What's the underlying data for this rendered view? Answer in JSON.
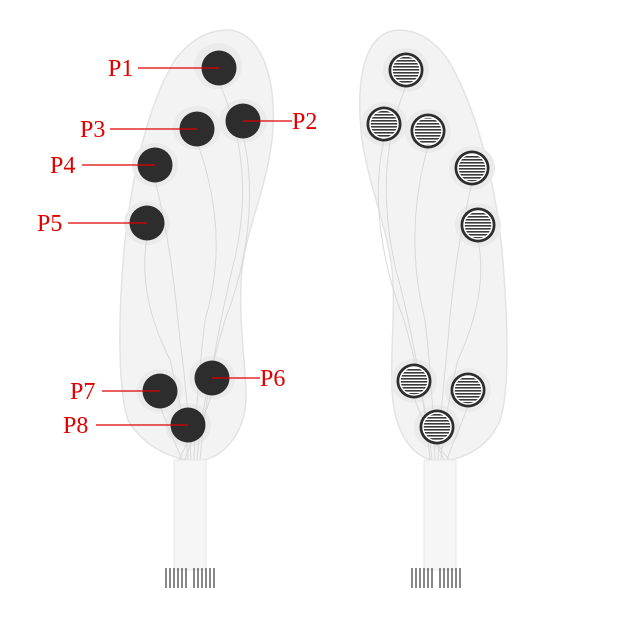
{
  "colors": {
    "label": "#e00000",
    "sensor": "#2d2d2d",
    "insole_fill": "#f3f3f3",
    "insole_edge": "#e3e3e3",
    "trace": "#d9d9d9"
  },
  "sensors": [
    {
      "id": "P1",
      "label": "P1"
    },
    {
      "id": "P2",
      "label": "P2"
    },
    {
      "id": "P3",
      "label": "P3"
    },
    {
      "id": "P4",
      "label": "P4"
    },
    {
      "id": "P5",
      "label": "P5"
    },
    {
      "id": "P6",
      "label": "P6"
    },
    {
      "id": "P7",
      "label": "P7"
    },
    {
      "id": "P8",
      "label": "P8"
    }
  ]
}
